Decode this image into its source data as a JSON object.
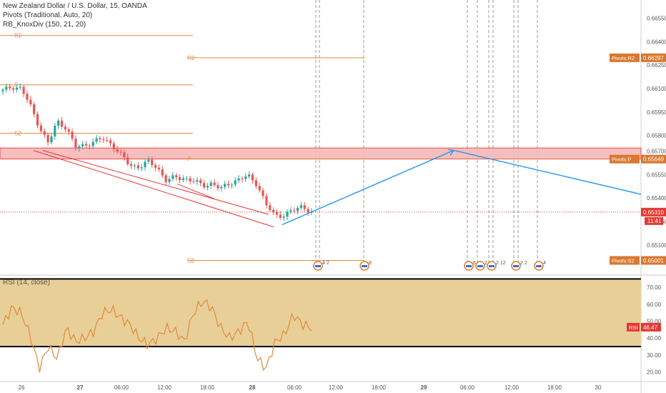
{
  "header": {
    "title": "New Zealand Dollar / U.S. Dollar, 15, OANDA",
    "indicator_1": "Pivots (Traditional, Auto, 20)",
    "indicator_2": "RB_KnoxDiv (150, 21, 20)",
    "rsi_label": "RSI (14, close)"
  },
  "colors": {
    "candle": "#26a69a",
    "candle_down": "#ef5350",
    "pivot_line": "#e08a3c",
    "trend_red": "#e53935",
    "projection": "#2196f3",
    "zone_fill": "#f7b7b7",
    "zone_border": "#e53935",
    "rsi_line": "#e08a3c",
    "rsi_band": "#e8cf98",
    "price_badge": "#e53935",
    "pivot_badge": "#d9782f"
  },
  "chart_data": [
    {
      "type": "line",
      "subtype": "candlestick",
      "title": "New Zealand Dollar / U.S. Dollar, 15, OANDA",
      "y_ticks": [
        "0.66550",
        "0.66400",
        "0.66250",
        "0.66100",
        "0.65950",
        "0.65800",
        "0.65700",
        "0.65550",
        "0.65400",
        "0.65250",
        "0.65100"
      ],
      "ylim": [
        0.6493,
        0.6663
      ],
      "x_ticks": [
        "26",
        "27",
        "06:00",
        "12:00",
        "18:00",
        "28",
        "06:00",
        "12:00",
        "18:00",
        "29",
        "06:00",
        "12:00",
        "18:00",
        "30"
      ],
      "series": [
        {
          "values": [
            0.66085,
            0.66113,
            0.66102,
            0.65992,
            0.65859,
            0.65748,
            0.65892,
            0.65849,
            0.65723,
            0.65739,
            0.6576,
            0.65779,
            0.65744,
            0.65675,
            0.65608,
            0.656,
            0.6563,
            0.65597,
            0.65511,
            0.65531,
            0.65527,
            0.65507,
            0.6548,
            0.65495,
            0.65457,
            0.65498,
            0.65519,
            0.6554,
            0.65491,
            0.65354,
            0.65287,
            0.65294,
            0.65319,
            0.6535,
            0.6531
          ]
        }
      ],
      "pivot_levels": [
        {
          "label": "R2",
          "value": 0.6644
        },
        {
          "label": "P",
          "value": 0.66124
        },
        {
          "label": "S2",
          "value": 0.65814
        },
        {
          "label": "R2",
          "value": 0.66297
        },
        {
          "label": "P",
          "value": 0.65649
        },
        {
          "label": "S2",
          "value": 0.65001
        }
      ],
      "price_badges": [
        {
          "text": "Pivots:R2",
          "value": "0.66297"
        },
        {
          "text": "Pivots:P",
          "value": "0.65649"
        },
        {
          "text": "Pivots:S2",
          "value": "0.65001"
        }
      ],
      "last_price": "0.65310",
      "countdown": "11:41",
      "zone": [
        0.6565,
        0.6572
      ],
      "projection_points": [
        {
          "from": "28 05:30",
          "price_from": 0.6523
        },
        {
          "to": "29 01:30",
          "price_to": 0.657
        },
        {
          "to": "30 12:00",
          "price_to": 0.6543
        }
      ],
      "event_badges": [
        "4 2",
        "8",
        "6",
        "2",
        "2 12",
        "2 2",
        "4"
      ]
    },
    {
      "type": "line",
      "title": "RSI (14, close)",
      "y_ticks": [
        "70.00",
        "60.00",
        "50.00",
        "40.00",
        "30.00",
        "20.00"
      ],
      "ylim": [
        16,
        76
      ],
      "band": [
        35,
        75
      ],
      "values": [
        48,
        58,
        55,
        42,
        22,
        35,
        28,
        46,
        38,
        40,
        44,
        55,
        57,
        52,
        48,
        40,
        36,
        40,
        46,
        44,
        38,
        55,
        62,
        58,
        46,
        40,
        44,
        50,
        28,
        22,
        38,
        42,
        54,
        48,
        46
      ],
      "last": "46.47",
      "label": "RSI"
    }
  ]
}
